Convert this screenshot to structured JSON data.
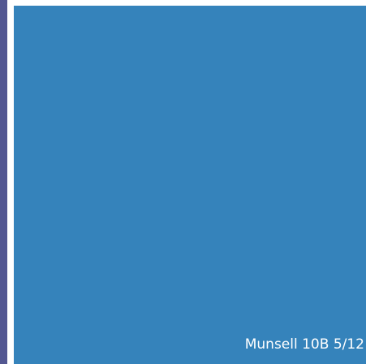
{
  "swatch": {
    "label": "Munsell 10B 5/12"
  }
}
